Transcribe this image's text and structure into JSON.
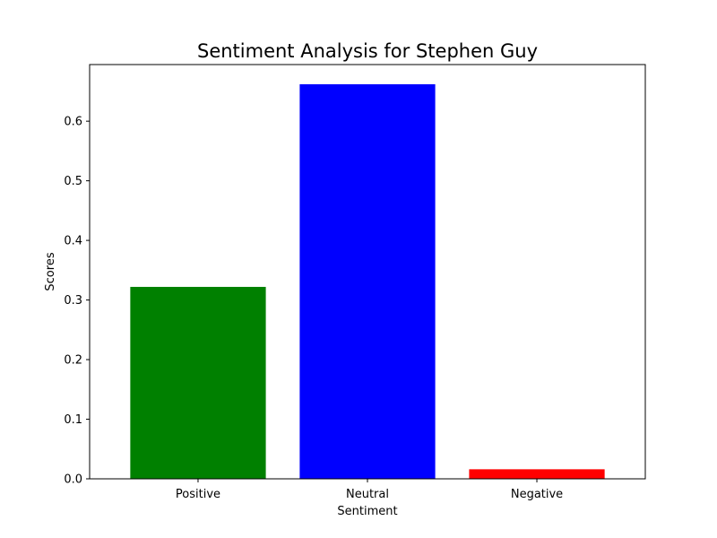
{
  "chart_data": {
    "type": "bar",
    "title": "Sentiment Analysis for Stephen Guy",
    "xlabel": "Sentiment",
    "ylabel": "Scores",
    "categories": [
      "Positive",
      "Neutral",
      "Negative"
    ],
    "values": [
      0.322,
      0.662,
      0.016
    ],
    "colors": [
      "#008000",
      "#0000ff",
      "#ff0000"
    ],
    "ylim": [
      0,
      0.695
    ],
    "yticks": [
      0.0,
      0.1,
      0.2,
      0.3,
      0.4,
      0.5,
      0.6
    ],
    "ytick_labels": [
      "0.0",
      "0.1",
      "0.2",
      "0.3",
      "0.4",
      "0.5",
      "0.6"
    ],
    "grid": false,
    "legend": "none"
  }
}
